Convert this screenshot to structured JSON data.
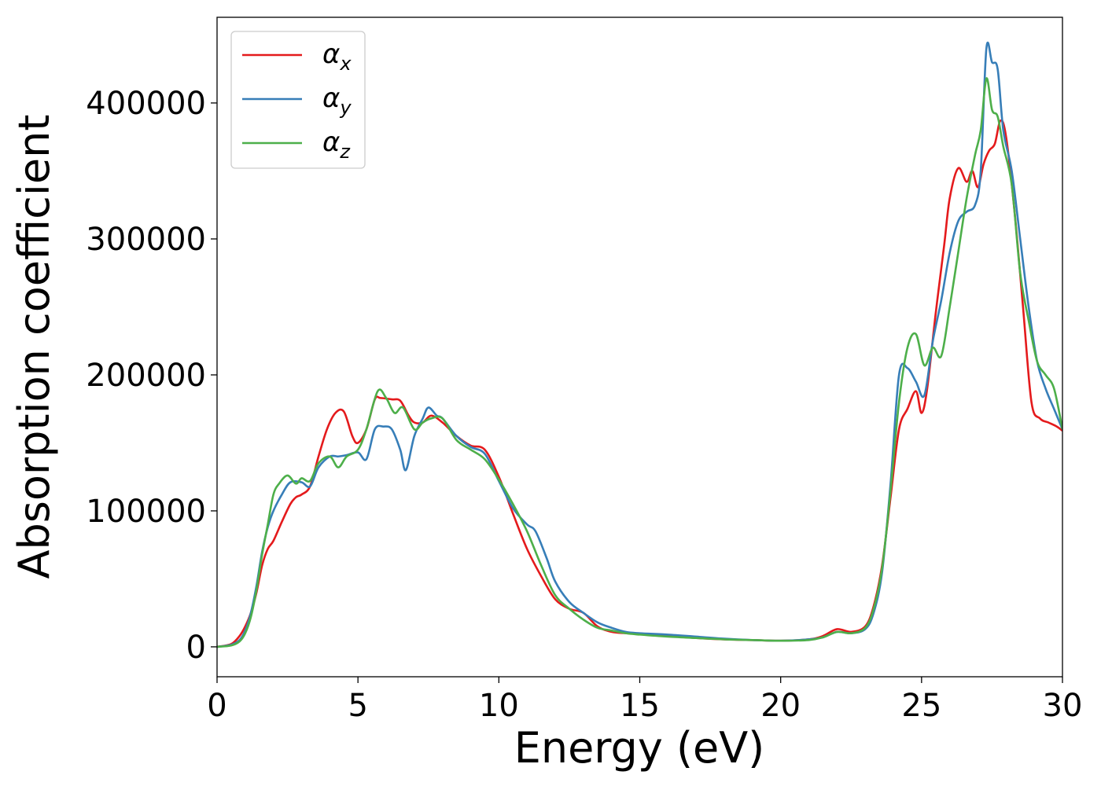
{
  "chart_data": {
    "type": "line",
    "title": "",
    "xlabel": "Energy (eV)",
    "ylabel": "Absorption coefficient",
    "xlim": [
      0,
      30
    ],
    "ylim": [
      -22000,
      463000
    ],
    "xticks": [
      0,
      5,
      10,
      15,
      20,
      25,
      30
    ],
    "yticks": [
      0,
      100000,
      200000,
      300000,
      400000
    ],
    "grid": false,
    "legend_position": "top-left",
    "series": [
      {
        "name": "α",
        "subscript": "x",
        "color": "#e41a1c",
        "x": [
          0,
          0.5,
          0.8,
          1.0,
          1.2,
          1.4,
          1.6,
          1.8,
          2.0,
          2.3,
          2.6,
          2.8,
          3.0,
          3.3,
          3.6,
          3.9,
          4.2,
          4.5,
          4.8,
          5.0,
          5.3,
          5.6,
          5.8,
          6.2,
          6.5,
          6.8,
          7.0,
          7.3,
          7.6,
          8.0,
          8.5,
          9.0,
          9.5,
          10.0,
          10.5,
          11.0,
          11.5,
          12.0,
          12.5,
          13.0,
          13.5,
          14.0,
          14.5,
          15.0,
          16.0,
          17.0,
          18.0,
          19.0,
          20.0,
          21.0,
          21.5,
          22.0,
          22.5,
          23.0,
          23.3,
          23.6,
          23.9,
          24.2,
          24.5,
          24.8,
          25.0,
          25.2,
          25.5,
          25.8,
          26.0,
          26.3,
          26.6,
          26.8,
          27.0,
          27.2,
          27.4,
          27.6,
          27.8,
          28.0,
          28.3,
          28.6,
          28.9,
          29.2,
          29.5,
          29.8,
          30.0
        ],
        "y": [
          0,
          2000,
          8000,
          15000,
          25000,
          40000,
          60000,
          72000,
          78000,
          92000,
          105000,
          110000,
          112000,
          118000,
          140000,
          160000,
          172000,
          173000,
          155000,
          150000,
          160000,
          182000,
          183000,
          182000,
          181000,
          170000,
          165000,
          165000,
          170000,
          165000,
          155000,
          148000,
          145000,
          125000,
          98000,
          72000,
          52000,
          35000,
          28000,
          25000,
          15000,
          11000,
          10000,
          9500,
          8000,
          6500,
          5500,
          5000,
          4500,
          5500,
          8000,
          13000,
          11000,
          15000,
          30000,
          60000,
          110000,
          160000,
          175000,
          188000,
          172000,
          190000,
          245000,
          295000,
          330000,
          352000,
          342000,
          350000,
          338000,
          355000,
          365000,
          370000,
          387000,
          375000,
          320000,
          250000,
          180000,
          168000,
          165000,
          162000,
          159000
        ]
      },
      {
        "name": "α",
        "subscript": "y",
        "color": "#377eb8",
        "x": [
          0,
          0.5,
          0.8,
          1.0,
          1.2,
          1.4,
          1.6,
          1.8,
          2.0,
          2.3,
          2.6,
          3.0,
          3.3,
          3.6,
          4.0,
          4.3,
          4.6,
          5.0,
          5.3,
          5.6,
          5.9,
          6.2,
          6.5,
          6.7,
          7.0,
          7.3,
          7.5,
          7.8,
          8.0,
          8.5,
          9.0,
          9.5,
          10.0,
          10.5,
          11.0,
          11.3,
          11.7,
          12.0,
          12.5,
          13.0,
          13.5,
          14.0,
          14.5,
          15.0,
          16.0,
          17.0,
          18.0,
          19.0,
          20.0,
          21.0,
          21.5,
          22.0,
          22.5,
          23.0,
          23.3,
          23.6,
          23.9,
          24.2,
          24.5,
          24.8,
          25.1,
          25.4,
          25.7,
          26.0,
          26.3,
          26.6,
          26.9,
          27.1,
          27.3,
          27.5,
          27.7,
          27.9,
          28.2,
          28.5,
          28.8,
          29.1,
          29.4,
          29.7,
          30.0
        ],
        "y": [
          0,
          1500,
          5000,
          12000,
          25000,
          45000,
          70000,
          88000,
          100000,
          112000,
          121000,
          121000,
          118000,
          132000,
          140000,
          140000,
          141000,
          143000,
          138000,
          160000,
          162000,
          160000,
          145000,
          130000,
          155000,
          168000,
          176000,
          170000,
          168000,
          155000,
          147000,
          142000,
          122000,
          102000,
          90000,
          85000,
          65000,
          48000,
          33000,
          25000,
          18000,
          14000,
          11000,
          10000,
          9000,
          7500,
          6000,
          5000,
          4500,
          5500,
          7000,
          11000,
          10000,
          13000,
          25000,
          55000,
          120000,
          200000,
          205000,
          195000,
          185000,
          225000,
          255000,
          290000,
          313000,
          320000,
          325000,
          350000,
          440000,
          430000,
          425000,
          380000,
          350000,
          300000,
          250000,
          210000,
          190000,
          175000,
          160000
        ]
      },
      {
        "name": "α",
        "subscript": "z",
        "color": "#4daf4a",
        "x": [
          0,
          0.5,
          0.8,
          1.0,
          1.2,
          1.4,
          1.6,
          1.8,
          2.0,
          2.2,
          2.5,
          2.8,
          3.0,
          3.3,
          3.6,
          4.0,
          4.3,
          4.6,
          5.0,
          5.3,
          5.7,
          6.0,
          6.3,
          6.6,
          7.0,
          7.3,
          7.6,
          8.0,
          8.5,
          9.0,
          9.5,
          10.0,
          10.5,
          11.0,
          11.5,
          12.0,
          12.5,
          13.0,
          13.5,
          14.0,
          14.5,
          15.0,
          16.0,
          17.0,
          18.0,
          19.0,
          20.0,
          21.0,
          21.5,
          22.0,
          22.5,
          23.0,
          23.3,
          23.6,
          23.9,
          24.2,
          24.5,
          24.8,
          25.1,
          25.4,
          25.7,
          26.0,
          26.3,
          26.6,
          26.9,
          27.1,
          27.3,
          27.5,
          27.7,
          27.9,
          28.2,
          28.5,
          28.8,
          29.1,
          29.4,
          29.7,
          30.0
        ],
        "y": [
          0,
          1000,
          4000,
          10000,
          22000,
          42000,
          68000,
          90000,
          112000,
          120000,
          126000,
          120000,
          124000,
          122000,
          135000,
          140000,
          132000,
          140000,
          145000,
          160000,
          188000,
          183000,
          172000,
          176000,
          160000,
          165000,
          168000,
          168000,
          152000,
          145000,
          138000,
          123000,
          105000,
          85000,
          60000,
          38000,
          28000,
          20000,
          14000,
          12000,
          10000,
          9000,
          7500,
          6500,
          5500,
          5000,
          4500,
          5000,
          7000,
          11000,
          10000,
          14000,
          28000,
          58000,
          115000,
          180000,
          220000,
          230000,
          207000,
          220000,
          214000,
          250000,
          290000,
          330000,
          362000,
          380000,
          418000,
          395000,
          390000,
          368000,
          340000,
          275000,
          240000,
          210000,
          200000,
          190000,
          160000
        ]
      }
    ]
  }
}
